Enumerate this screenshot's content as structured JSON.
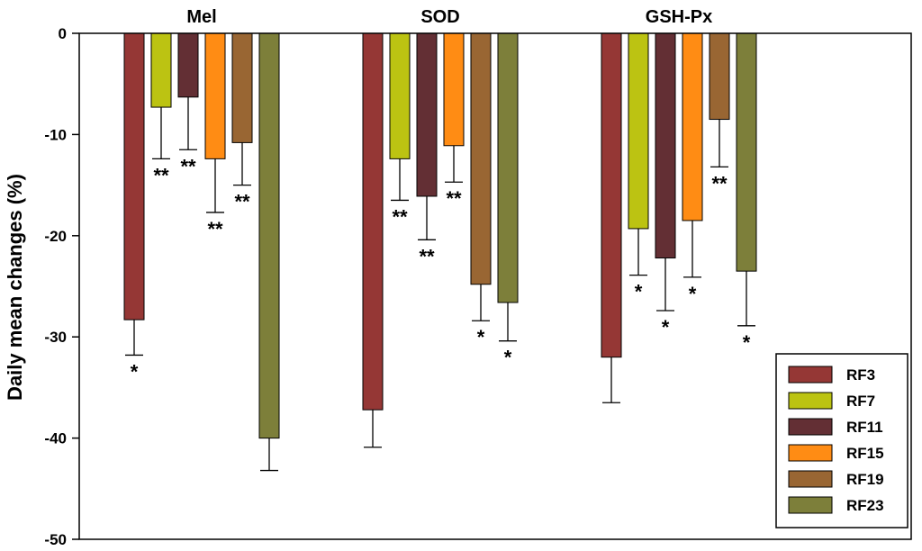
{
  "chart_data": {
    "type": "bar",
    "ylabel": "Daily mean changes (%)",
    "ylim": [
      -50,
      0
    ],
    "yticks": [
      0,
      -10,
      -20,
      -30,
      -40,
      -50
    ],
    "legend_position": "bottom-right",
    "categories": [
      "Mel",
      "SOD",
      "GSH-Px"
    ],
    "series": [
      {
        "name": "RF3",
        "color": "#953735",
        "values": [
          -28.3,
          -37.2,
          -32.0
        ],
        "errors": [
          3.5,
          3.7,
          4.5
        ],
        "sig": [
          "*",
          "",
          ""
        ]
      },
      {
        "name": "RF7",
        "color": "#bcc312",
        "values": [
          -7.3,
          -12.4,
          -19.3
        ],
        "errors": [
          5.1,
          4.1,
          4.6
        ],
        "sig": [
          "**",
          "**",
          "*"
        ]
      },
      {
        "name": "RF11",
        "color": "#632f34",
        "values": [
          -6.3,
          -16.1,
          -22.2
        ],
        "errors": [
          5.2,
          4.3,
          5.2
        ],
        "sig": [
          "**",
          "**",
          "*"
        ]
      },
      {
        "name": "RF15",
        "color": "#ff8c14",
        "values": [
          -12.4,
          -11.1,
          -18.5
        ],
        "errors": [
          5.3,
          3.6,
          5.6
        ],
        "sig": [
          "**",
          "**",
          "*"
        ]
      },
      {
        "name": "RF19",
        "color": "#996633",
        "values": [
          -10.8,
          -24.8,
          -8.5
        ],
        "errors": [
          4.2,
          3.6,
          4.7
        ],
        "sig": [
          "**",
          "*",
          "**"
        ]
      },
      {
        "name": "RF23",
        "color": "#7d7f3a",
        "values": [
          -40.0,
          -26.6,
          -23.5
        ],
        "errors": [
          3.2,
          3.8,
          5.4
        ],
        "sig": [
          "",
          "*",
          "*"
        ]
      }
    ]
  }
}
